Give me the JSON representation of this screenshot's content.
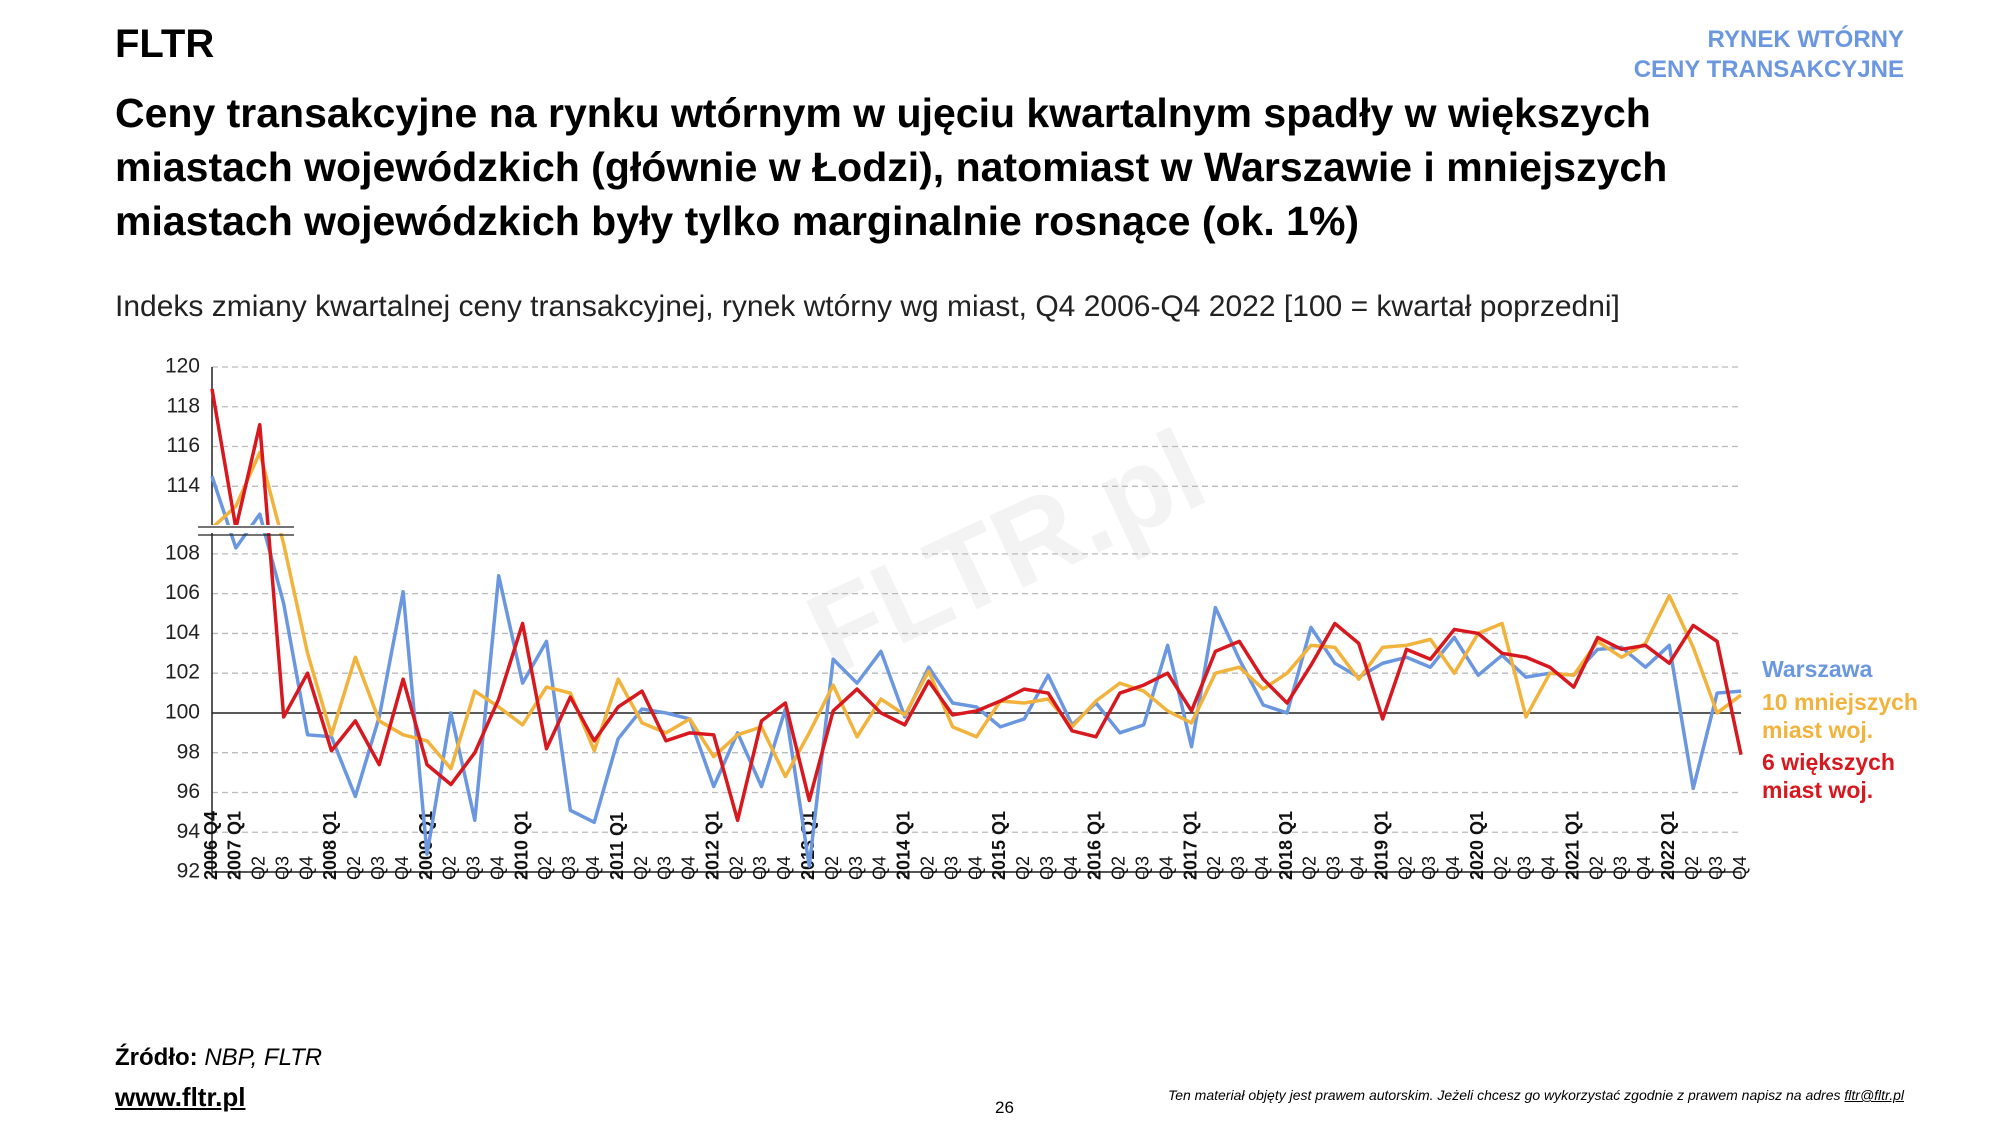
{
  "brand": "FLTR",
  "section": [
    "RYNEK WTÓRNY",
    "CENY TRANSAKCYJNE"
  ],
  "title": [
    "Ceny transakcyjne na rynku wtórnym w ujęciu kwartalnym spadły w większych",
    "miastach wojewódzkich (głównie w Łodzi), natomiast w Warszawie i mniejszych",
    "miastach wojewódzkich były tylko marginalnie rosnące (ok. 1%)"
  ],
  "source_label": "Źródło:",
  "source": "NBP, FLTR",
  "website": "www.fltr.pl",
  "page_number": "26",
  "copyright_note": "Ten materiał objęty jest prawem autorskim. Jeżeli chcesz go wykorzystać zgodnie z prawem napisz na adres",
  "copyright_email": "fltr@fltr.pl",
  "watermark": "FLTR.pl",
  "chart_data": {
    "type": "line",
    "subtitle": "Indeks zmiany kwartalnej ceny transakcyjnej, rynek wtórny wg miast, Q4 2006-Q4 2022 [100 = kwartał poprzedni]",
    "categories": [
      "2006 Q4",
      "2007 Q1",
      "Q2",
      "Q3",
      "Q4",
      "2008 Q1",
      "Q2",
      "Q3",
      "Q4",
      "2009 Q1",
      "Q2",
      "Q3",
      "Q4",
      "2010 Q1",
      "Q2",
      "Q3",
      "Q4",
      "2011 Q1",
      "Q2",
      "Q3",
      "Q4",
      "2012 Q1",
      "Q2",
      "Q3",
      "Q4",
      "2013 Q1",
      "Q2",
      "Q3",
      "Q4",
      "2014 Q1",
      "Q2",
      "Q3",
      "Q4",
      "2015 Q1",
      "Q2",
      "Q3",
      "Q4",
      "2016 Q1",
      "Q2",
      "Q3",
      "Q4",
      "2017 Q1",
      "Q2",
      "Q3",
      "Q4",
      "2018 Q1",
      "Q2",
      "Q3",
      "Q4",
      "2019 Q1",
      "Q2",
      "Q3",
      "Q4",
      "2020 Q1",
      "Q2",
      "Q3",
      "Q4",
      "2021 Q1",
      "Q2",
      "Q3",
      "Q4",
      "2022 Q1",
      "Q2",
      "Q3",
      "Q4"
    ],
    "series": [
      {
        "name": "Warszawa",
        "color": "#6b97e0",
        "values": [
          114.5,
          108.3,
          112.6,
          105.5,
          98.9,
          98.8,
          95.8,
          99.8,
          106.1,
          92.9,
          100,
          94.6,
          106.9,
          101.5,
          103.6,
          95.1,
          94.5,
          98.7,
          100.2,
          100,
          99.7,
          96.3,
          99,
          96.3,
          100.2,
          92.3,
          102.7,
          101.5,
          103.1,
          99.8,
          102.3,
          100.5,
          100.3,
          99.3,
          99.7,
          101.9,
          99.4,
          100.5,
          99,
          99.4,
          103.4,
          98.3,
          105.3,
          102.7,
          100.4,
          100,
          104.3,
          102.5,
          101.8,
          102.5,
          102.8,
          102.3,
          103.8,
          101.9,
          102.9,
          101.8,
          102,
          101.9,
          103.2,
          103.3,
          102.3,
          103.4,
          96.2,
          101,
          101.1
        ]
      },
      {
        "name": "10 mniejszych miast woj.",
        "color": "#f2b33d",
        "values": [
          111.9,
          113,
          115.7,
          108.5,
          103,
          98.9,
          102.8,
          99.6,
          98.9,
          98.6,
          97.2,
          101.1,
          100.3,
          99.4,
          101.3,
          101,
          98.1,
          101.7,
          99.5,
          99,
          99.7,
          97.8,
          98.9,
          99.3,
          96.8,
          99,
          101.4,
          98.8,
          100.7,
          99.9,
          102.1,
          99.3,
          98.8,
          100.6,
          100.5,
          100.7,
          99.3,
          100.6,
          101.5,
          101.1,
          100.1,
          99.5,
          102,
          102.3,
          101.2,
          102,
          103.4,
          103.3,
          101.7,
          103.3,
          103.4,
          103.7,
          102,
          104,
          104.5,
          99.8,
          102,
          101.9,
          103.6,
          102.8,
          103.5,
          105.9,
          103.3,
          100,
          100.9
        ]
      },
      {
        "name": "6 większych miast woj.",
        "color": "#d7191f",
        "values": [
          118.9,
          111.9,
          117.1,
          99.8,
          102,
          98.1,
          99.6,
          97.4,
          101.7,
          97.4,
          96.4,
          98,
          100.7,
          104.5,
          98.2,
          100.8,
          98.6,
          100.3,
          101.1,
          98.6,
          99,
          98.9,
          94.6,
          99.6,
          100.5,
          95.6,
          100.1,
          101.2,
          100,
          99.4,
          101.6,
          99.9,
          100.1,
          100.6,
          101.2,
          101,
          99.1,
          98.8,
          101,
          101.4,
          102,
          100.1,
          103.1,
          103.6,
          101.7,
          100.5,
          102.4,
          104.5,
          103.5,
          99.7,
          103.2,
          102.7,
          104.2,
          104,
          103,
          102.8,
          102.3,
          101.3,
          103.8,
          103.2,
          103.4,
          102.5,
          104.4,
          103.6,
          97.9
        ]
      }
    ],
    "ylim": [
      92,
      120
    ],
    "axis_break": [
      109.1,
      111.7
    ],
    "yticks": [
      92,
      94,
      96,
      98,
      100,
      102,
      104,
      106,
      108,
      114,
      116,
      118,
      120
    ],
    "baseline": 100,
    "grid": true
  }
}
